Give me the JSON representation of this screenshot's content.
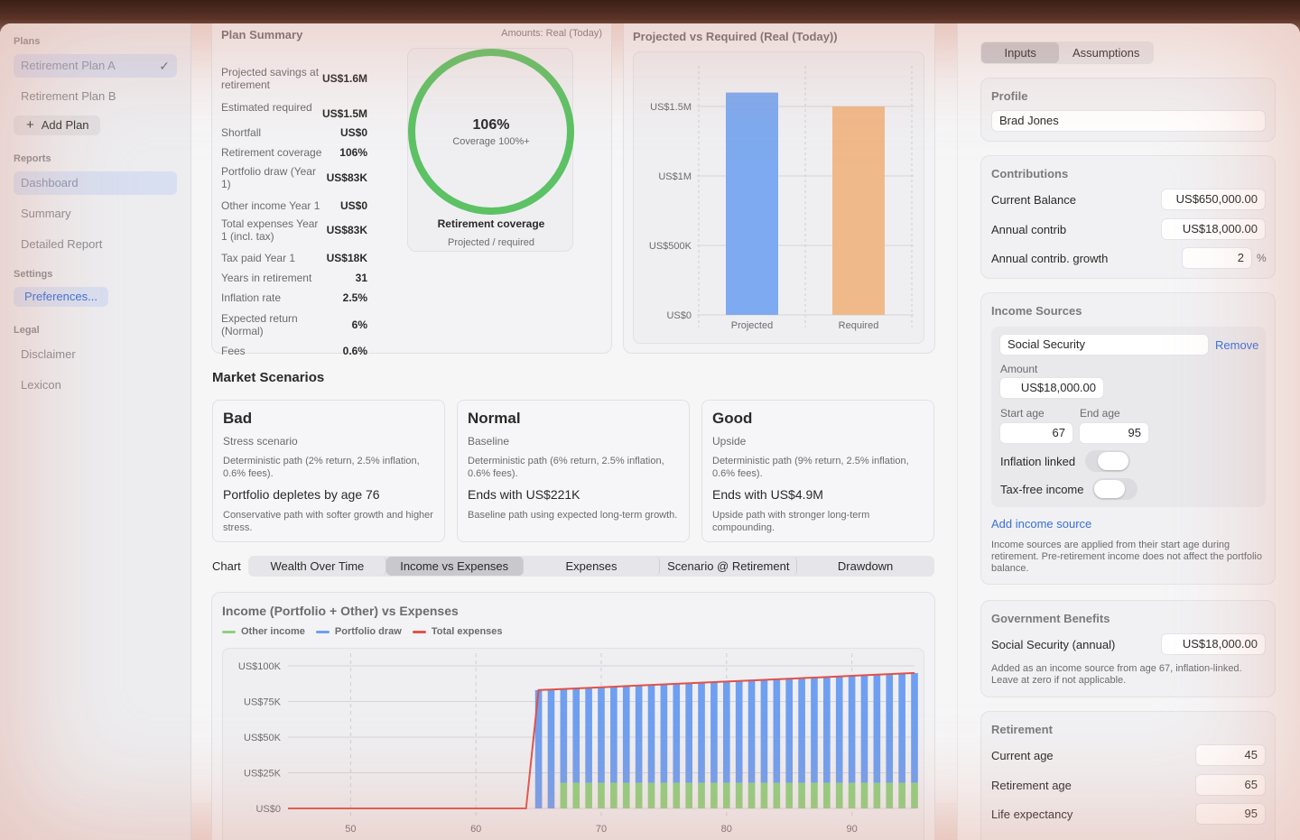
{
  "sidebar": {
    "plans_label": "Plans",
    "plans": [
      {
        "label": "Retirement Plan A",
        "checked": true
      },
      {
        "label": "Retirement Plan B",
        "checked": false
      }
    ],
    "add_plan_label": "Add Plan",
    "reports_label": "Reports",
    "reports": [
      "Dashboard",
      "Summary",
      "Detailed Report"
    ],
    "settings_label": "Settings",
    "preferences_label": "Preferences...",
    "legal_label": "Legal",
    "legal": [
      "Disclaimer",
      "Lexicon"
    ]
  },
  "plan_summary": {
    "title": "Plan Summary",
    "amounts_note": "Amounts: Real (Today)",
    "rows": [
      {
        "label": "Projected savings at retirement",
        "value": "US$1.6M"
      },
      {
        "label": "Estimated required",
        "value": "US$1.5M"
      },
      {
        "label": "Shortfall",
        "value": "US$0"
      },
      {
        "label": "Retirement coverage",
        "value": "106%"
      },
      {
        "label": "Portfolio draw (Year 1)",
        "value": "US$83K"
      },
      {
        "label": "Other income Year 1",
        "value": "US$0"
      },
      {
        "label": "Total expenses Year 1 (incl. tax)",
        "value": "US$83K"
      },
      {
        "label": "Tax paid Year 1",
        "value": "US$18K"
      },
      {
        "label": "Years in retirement",
        "value": "31"
      },
      {
        "label": "Inflation rate",
        "value": "2.5%"
      },
      {
        "label": "Expected return (Normal)",
        "value": "6%"
      },
      {
        "label": "Fees",
        "value": "0.6%"
      }
    ],
    "gauge": {
      "percent_label": "106%",
      "sub_label": "Coverage 100%+",
      "title": "Retirement coverage",
      "caption": "Projected / required",
      "fill_fraction": 1.0,
      "color": "#5cc264"
    }
  },
  "proj_vs_req": {
    "title": "Projected vs Required (Real (Today))",
    "chart_data": {
      "type": "bar",
      "categories": [
        "Projected",
        "Required"
      ],
      "values": [
        1600000,
        1500000
      ],
      "colors": [
        "#7daaf0",
        "#f0b98a"
      ],
      "ylim": [
        0,
        1500000
      ],
      "yticks": [
        {
          "v": 0,
          "label": "US$0"
        },
        {
          "v": 500000,
          "label": "US$500K"
        },
        {
          "v": 1000000,
          "label": "US$1M"
        },
        {
          "v": 1500000,
          "label": "US$1.5M"
        }
      ],
      "grid": true
    }
  },
  "market": {
    "title": "Market Scenarios",
    "scenarios": [
      {
        "name": "Bad",
        "sub": "Stress scenario",
        "desc": "Deterministic path (2% return, 2.5% inflation, 0.6% fees).",
        "result": "Portfolio depletes by age 76",
        "note": "Conservative path with softer growth and higher stress."
      },
      {
        "name": "Normal",
        "sub": "Baseline",
        "desc": "Deterministic path (6% return, 2.5% inflation, 0.6% fees).",
        "result": "Ends with US$221K",
        "note": "Baseline path using expected long-term growth."
      },
      {
        "name": "Good",
        "sub": "Upside",
        "desc": "Deterministic path (9% return, 2.5% inflation, 0.6% fees).",
        "result": "Ends with US$4.9M",
        "note": "Upside path with stronger long-term compounding."
      }
    ]
  },
  "chart_tabs": {
    "label": "Chart",
    "tabs": [
      "Wealth Over Time",
      "Income vs Expenses",
      "Expenses",
      "Scenario @ Retirement",
      "Drawdown"
    ],
    "active_index": 1
  },
  "income_chart": {
    "title": "Income (Portfolio + Other) vs Expenses",
    "legend": [
      {
        "name": "Other income",
        "color": "#8fd07f"
      },
      {
        "name": "Portfolio draw",
        "color": "#6f9ff0"
      },
      {
        "name": "Total expenses",
        "color": "#e0524a"
      }
    ],
    "chart_data": {
      "type": "bar",
      "x_start": 45,
      "x_end": 95,
      "retirement_age": 65,
      "other_income_start_age": 67,
      "other_income": 18000,
      "expenses_start": 83000,
      "expenses_end": 95000,
      "xlim": [
        40,
        95
      ],
      "ylim": [
        0,
        100000
      ],
      "xticks": [
        {
          "v": 50,
          "label": "50"
        },
        {
          "v": 60,
          "label": "60"
        },
        {
          "v": 70,
          "label": "70"
        },
        {
          "v": 80,
          "label": "80"
        },
        {
          "v": 90,
          "label": "90"
        }
      ],
      "yticks": [
        {
          "v": 0,
          "label": "US$0"
        },
        {
          "v": 25000,
          "label": "US$25K"
        },
        {
          "v": 50000,
          "label": "US$50K"
        },
        {
          "v": 75000,
          "label": "US$75K"
        },
        {
          "v": 100000,
          "label": "US$100K"
        }
      ],
      "grid": true
    }
  },
  "right": {
    "tabs": [
      "Inputs",
      "Assumptions"
    ],
    "profile": {
      "title": "Profile",
      "name": "Brad Jones"
    },
    "contributions": {
      "title": "Contributions",
      "rows": [
        {
          "label": "Current Balance",
          "value": "US$650,000.00"
        },
        {
          "label": "Annual contrib",
          "value": "US$18,000.00"
        },
        {
          "label": "Annual contrib. growth",
          "value": "2",
          "unit": "%"
        }
      ]
    },
    "income_sources": {
      "title": "Income Sources",
      "source_name": "Social Security",
      "remove_label": "Remove",
      "amount_label": "Amount",
      "amount_value": "US$18,000.00",
      "start_label": "Start age",
      "start_value": "67",
      "end_label": "End age",
      "end_value": "95",
      "inflation_label": "Inflation linked",
      "taxfree_label": "Tax-free income",
      "add_label": "Add income source",
      "note": "Income sources are applied from their start age during retirement. Pre-retirement income does not affect the portfolio balance."
    },
    "gov": {
      "title": "Government Benefits",
      "label": "Social Security (annual)",
      "value": "US$18,000.00",
      "note": "Added as an income source from age 67, inflation-linked. Leave at zero if not applicable."
    },
    "retirement": {
      "title": "Retirement",
      "rows": [
        {
          "label": "Current age",
          "value": "45"
        },
        {
          "label": "Retirement age",
          "value": "65"
        },
        {
          "label": "Life expectancy",
          "value": "95"
        }
      ]
    }
  }
}
